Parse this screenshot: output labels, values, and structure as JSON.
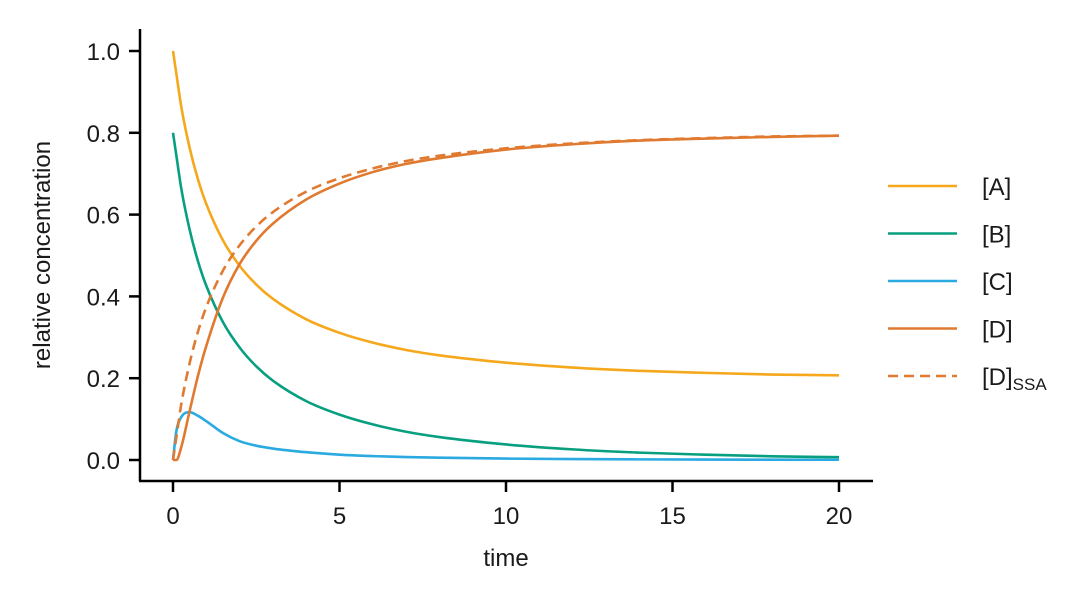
{
  "chart_data": {
    "type": "line",
    "title": "",
    "xlabel": "time",
    "ylabel": "relative concentration",
    "xlim": [
      -1,
      21
    ],
    "ylim": [
      -0.05,
      1.05
    ],
    "xticks": [
      0,
      5,
      10,
      15,
      20
    ],
    "xtick_labels": [
      "0",
      "5",
      "10",
      "15",
      "20"
    ],
    "yticks": [
      0.0,
      0.2,
      0.4,
      0.6,
      0.8,
      1.0
    ],
    "ytick_labels": [
      "0.0",
      "0.2",
      "0.4",
      "0.6",
      "0.8",
      "1.0"
    ],
    "grid": false,
    "legend_position": "right, outside plot",
    "x": [
      0,
      0.1,
      0.25,
      0.5,
      0.75,
      1,
      1.5,
      2,
      2.5,
      3,
      4,
      5,
      6,
      7,
      8,
      10,
      12,
      14,
      16,
      18,
      20
    ],
    "series": [
      {
        "name": "[A]",
        "label_main": "[A]",
        "label_sub": "",
        "color": "#F5A81C",
        "dash": "solid",
        "values": [
          1.0,
          0.945,
          0.863,
          0.763,
          0.686,
          0.626,
          0.537,
          0.475,
          0.429,
          0.394,
          0.344,
          0.311,
          0.287,
          0.269,
          0.256,
          0.238,
          0.226,
          0.218,
          0.213,
          0.209,
          0.207
        ]
      },
      {
        "name": "[B]",
        "label_main": "[B]",
        "label_sub": "",
        "color": "#079F7F",
        "dash": "solid",
        "values": [
          0.8,
          0.745,
          0.663,
          0.563,
          0.486,
          0.426,
          0.337,
          0.275,
          0.229,
          0.194,
          0.144,
          0.111,
          0.087,
          0.069,
          0.056,
          0.038,
          0.026,
          0.018,
          0.013,
          0.009,
          0.007
        ]
      },
      {
        "name": "[C]",
        "label_main": "[C]",
        "label_sub": "",
        "color": "#2AAAE1",
        "dash": "solid",
        "values": [
          0.0,
          0.07,
          0.105,
          0.117,
          0.108,
          0.095,
          0.066,
          0.046,
          0.035,
          0.028,
          0.019,
          0.013,
          0.0095,
          0.0072,
          0.0056,
          0.0034,
          0.0022,
          0.0015,
          0.001,
          0.0008,
          0.0006
        ]
      },
      {
        "name": "[D]",
        "label_main": "[D]",
        "label_sub": "",
        "color": "#E07A30",
        "dash": "solid",
        "values": [
          0.0,
          0.0,
          0.032,
          0.12,
          0.206,
          0.279,
          0.397,
          0.479,
          0.536,
          0.578,
          0.637,
          0.676,
          0.704,
          0.724,
          0.738,
          0.759,
          0.772,
          0.781,
          0.786,
          0.79,
          0.793
        ]
      },
      {
        "name": "[D]SSA",
        "label_main": "[D]",
        "label_sub": "SSA",
        "color": "#E07A30",
        "dash": "dashed",
        "values": [
          0.0,
          0.055,
          0.137,
          0.237,
          0.314,
          0.374,
          0.463,
          0.525,
          0.571,
          0.606,
          0.656,
          0.689,
          0.713,
          0.731,
          0.744,
          0.762,
          0.774,
          0.782,
          0.787,
          0.791,
          0.793
        ]
      }
    ]
  }
}
